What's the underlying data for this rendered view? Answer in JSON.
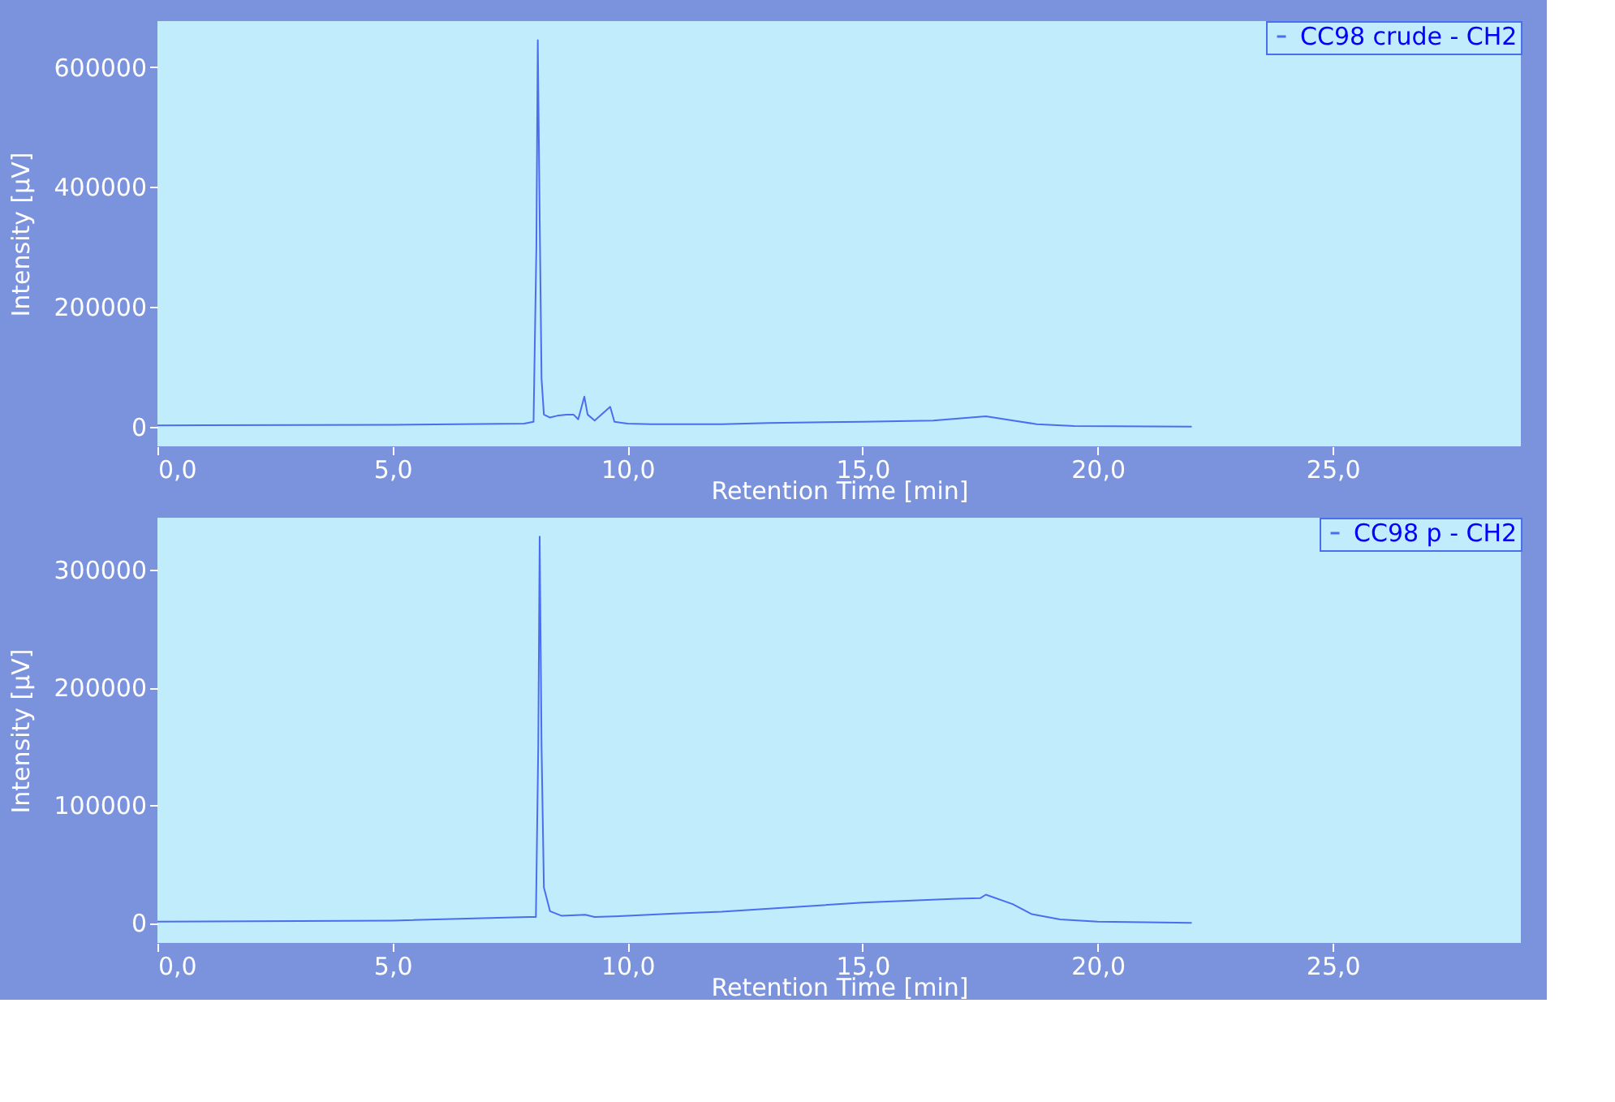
{
  "chart_data": [
    {
      "type": "line",
      "xlabel": "Retention Time [min]",
      "ylabel": "Intensity [µV]",
      "legend": "top right",
      "grid": false,
      "xlim": [
        0,
        29
      ],
      "xticks": [
        {
          "value": 0,
          "label": "0,0"
        },
        {
          "value": 5,
          "label": "5,0"
        },
        {
          "value": 10,
          "label": "10,0"
        },
        {
          "value": 15,
          "label": "15,0"
        },
        {
          "value": 20,
          "label": "20,0"
        },
        {
          "value": 25,
          "label": "25,0"
        }
      ],
      "ylim": [
        -33000,
        677000
      ],
      "yticks": [
        0,
        200000,
        400000,
        600000
      ],
      "series": [
        {
          "name": "CC98 crude - CH2",
          "color": "#4b6ef0",
          "x": [
            0,
            5,
            7.8,
            8.0,
            8.06,
            8.09,
            8.13,
            8.17,
            8.22,
            8.35,
            8.5,
            8.7,
            8.85,
            8.95,
            9.08,
            9.15,
            9.3,
            9.63,
            9.72,
            10,
            10.5,
            12,
            13,
            15,
            16.5,
            17.62,
            18.2,
            18.7,
            19.5,
            22
          ],
          "values": [
            2000,
            3000,
            5000,
            8000,
            300000,
            645000,
            350000,
            80000,
            20000,
            15000,
            18000,
            20000,
            20000,
            12000,
            50000,
            20000,
            10000,
            33000,
            8000,
            5000,
            4000,
            4000,
            6000,
            8000,
            10000,
            17000,
            10000,
            4000,
            1000,
            0
          ]
        }
      ]
    },
    {
      "type": "line",
      "xlabel": "Retention Time [min]",
      "ylabel": "Intensity [µV]",
      "legend": "top right",
      "grid": false,
      "xlim": [
        0,
        29
      ],
      "xticks": [
        {
          "value": 0,
          "label": "0,0"
        },
        {
          "value": 5,
          "label": "5,0"
        },
        {
          "value": 10,
          "label": "10,0"
        },
        {
          "value": 15,
          "label": "15,0"
        },
        {
          "value": 20,
          "label": "20,0"
        },
        {
          "value": 25,
          "label": "25,0"
        }
      ],
      "ylim": [
        -17000,
        344000
      ],
      "yticks": [
        0,
        100000,
        200000,
        300000
      ],
      "series": [
        {
          "name": "CC98 p - CH2",
          "color": "#4b6ef0",
          "x": [
            0,
            5,
            7.9,
            8.05,
            8.1,
            8.13,
            8.17,
            8.22,
            8.35,
            8.6,
            9.1,
            9.3,
            10,
            11,
            12,
            15,
            17,
            17.5,
            17.62,
            18.19,
            18.6,
            19.2,
            20,
            22
          ],
          "values": [
            1000,
            2000,
            5000,
            5000,
            150000,
            328000,
            150000,
            30000,
            10000,
            6000,
            7000,
            5000,
            6000,
            8000,
            9500,
            17300,
            20500,
            21000,
            24000,
            16000,
            7400,
            3000,
            1000,
            0
          ]
        }
      ]
    }
  ]
}
